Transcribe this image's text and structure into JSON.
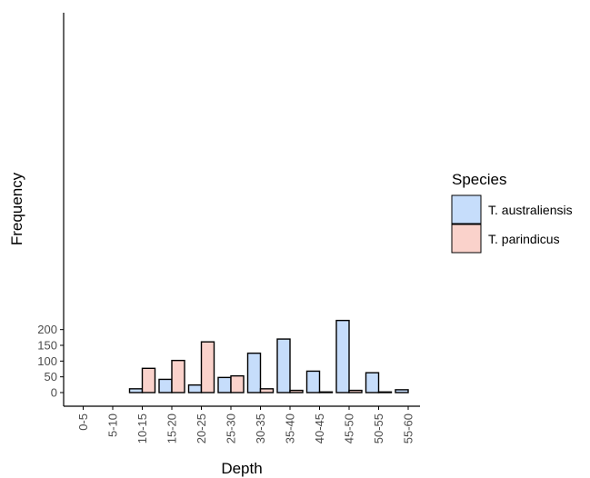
{
  "chart_data": {
    "type": "bar",
    "xlabel": "Depth",
    "ylabel": "Frequency",
    "categories": [
      "0-5",
      "5-10",
      "10-15",
      "15-20",
      "20-25",
      "25-30",
      "30-35",
      "35-40",
      "40-45",
      "45-50",
      "50-55",
      "55-60"
    ],
    "series": [
      {
        "name": "T. australiensis",
        "color": "#c6ddfb",
        "values": [
          0,
          0,
          12,
          42,
          24,
          48,
          125,
          170,
          68,
          229,
          63,
          9
        ]
      },
      {
        "name": "T. parindicus",
        "color": "#fad2cb",
        "values": [
          0,
          0,
          77,
          102,
          161,
          53,
          12,
          7,
          2,
          7,
          2,
          0
        ]
      }
    ],
    "yticks": [
      0,
      50,
      100,
      150,
      200
    ],
    "ylim": [
      0,
      230
    ],
    "legend": {
      "title": "Species",
      "position": "right"
    },
    "grid": false
  }
}
